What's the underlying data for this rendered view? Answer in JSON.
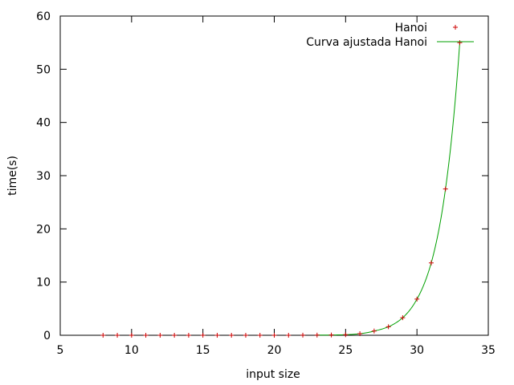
{
  "chart_data": {
    "type": "scatter",
    "xlabel": "input size",
    "ylabel": "time(s)",
    "xlim": [
      5,
      35
    ],
    "ylim": [
      0,
      60
    ],
    "xticks": [
      5,
      10,
      15,
      20,
      25,
      30,
      35
    ],
    "yticks": [
      0,
      10,
      20,
      30,
      40,
      50,
      60
    ],
    "grid": false,
    "legend_position": "top-right",
    "series": [
      {
        "name": "Hanoi",
        "kind": "points",
        "marker": "plus",
        "color": "#cc0000",
        "x": [
          8,
          9,
          10,
          11,
          12,
          13,
          14,
          15,
          16,
          17,
          18,
          19,
          20,
          21,
          22,
          23,
          24,
          25,
          26,
          27,
          28,
          29,
          30,
          31,
          32,
          33
        ],
        "y": [
          0,
          0,
          0,
          0,
          0,
          0,
          0,
          0,
          0,
          0,
          0,
          0,
          0,
          0,
          0.02,
          0.03,
          0.05,
          0.1,
          0.3,
          0.8,
          1.6,
          3.3,
          6.8,
          13.6,
          27.5,
          55
        ]
      },
      {
        "name": "Curva ajustada Hanoi",
        "kind": "line",
        "color": "#00a000",
        "x": [
          23,
          24,
          25,
          26,
          27,
          28,
          29,
          30,
          31,
          32,
          33
        ],
        "y": [
          0.03,
          0.05,
          0.1,
          0.3,
          0.8,
          1.6,
          3.3,
          6.8,
          13.6,
          27.5,
          55
        ]
      }
    ]
  }
}
